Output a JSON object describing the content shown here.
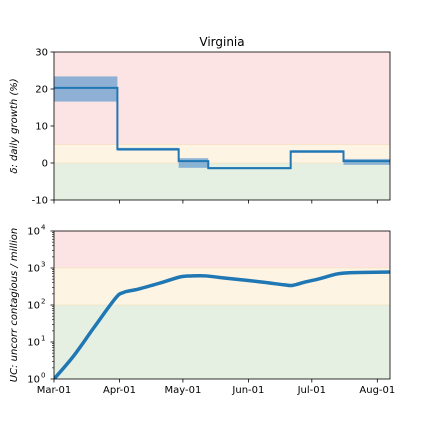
{
  "chart_data": [
    {
      "type": "step",
      "title": "Virginia",
      "ylabel": "δ: daily growth (%)",
      "xlabel": "",
      "ylim": [
        -10,
        30
      ],
      "xlim": [
        "2020-03-01",
        "2020-08-07"
      ],
      "yticks": [
        -10,
        0,
        10,
        20,
        30
      ],
      "xticks": [
        "Mar-01",
        "Apr-01",
        "May-01",
        "Jun-01",
        "Jul-01",
        "Aug-01"
      ],
      "show_xtick_labels": false,
      "grid": false,
      "bands": [
        {
          "from": 5,
          "to": 30,
          "color": "#fde4e4"
        },
        {
          "from": 0,
          "to": 5,
          "color": "#fdf4e3"
        },
        {
          "from": -10,
          "to": 0,
          "color": "#e5f0e2"
        }
      ],
      "series": [
        {
          "color": "#1f77b4",
          "band_color": "#6a9fd0",
          "steps": [
            {
              "start": "2020-03-01",
              "end": "2020-03-31",
              "value": 20.3,
              "lo": 16.6,
              "hi": 23.4
            },
            {
              "start": "2020-03-31",
              "end": "2020-04-29",
              "value": 3.7,
              "lo": 3.3,
              "hi": 4.1
            },
            {
              "start": "2020-04-29",
              "end": "2020-05-13",
              "value": 0.5,
              "lo": -1.3,
              "hi": 1.3
            },
            {
              "start": "2020-05-13",
              "end": "2020-06-21",
              "value": -1.4,
              "lo": -1.7,
              "hi": -1.1
            },
            {
              "start": "2020-06-21",
              "end": "2020-07-16",
              "value": 3.1,
              "lo": 2.7,
              "hi": 3.5
            },
            {
              "start": "2020-07-16",
              "end": "2020-08-07",
              "value": 0.5,
              "lo": -0.5,
              "hi": 1.1
            }
          ]
        }
      ]
    },
    {
      "type": "line",
      "title": "",
      "ylabel": "UC: uncorr contagious / million",
      "xlabel": "",
      "yscale": "log",
      "ylim": [
        1,
        10000
      ],
      "xlim": [
        "2020-03-01",
        "2020-08-07"
      ],
      "yticks": [
        1,
        10,
        100,
        1000,
        10000
      ],
      "ytick_labels": [
        [
          "10",
          "0"
        ],
        [
          "10",
          "1"
        ],
        [
          "10",
          "2"
        ],
        [
          "10",
          "3"
        ],
        [
          "10",
          "4"
        ]
      ],
      "xticks": [
        "Mar-01",
        "Apr-01",
        "May-01",
        "Jun-01",
        "Jul-01",
        "Aug-01"
      ],
      "grid": false,
      "bands": [
        {
          "from": 1000,
          "to": 10000,
          "color": "#fde4e4"
        },
        {
          "from": 100,
          "to": 1000,
          "color": "#fdf4e3"
        },
        {
          "from": 1,
          "to": 100,
          "color": "#e5f0e2"
        }
      ],
      "series": [
        {
          "color": "#1f77b4",
          "points": [
            [
              "2020-03-01",
              1
            ],
            [
              "2020-03-10",
              4
            ],
            [
              "2020-03-20",
              25
            ],
            [
              "2020-03-30",
              150
            ],
            [
              "2020-04-03",
              220
            ],
            [
              "2020-04-10",
              270
            ],
            [
              "2020-04-20",
              390
            ],
            [
              "2020-04-30",
              580
            ],
            [
              "2020-05-05",
              610
            ],
            [
              "2020-05-12",
              610
            ],
            [
              "2020-05-20",
              540
            ],
            [
              "2020-06-01",
              460
            ],
            [
              "2020-06-10",
              400
            ],
            [
              "2020-06-18",
              350
            ],
            [
              "2020-06-22",
              340
            ],
            [
              "2020-06-28",
              420
            ],
            [
              "2020-07-05",
              520
            ],
            [
              "2020-07-13",
              690
            ],
            [
              "2020-07-20",
              750
            ],
            [
              "2020-08-07",
              780
            ]
          ]
        }
      ]
    }
  ]
}
